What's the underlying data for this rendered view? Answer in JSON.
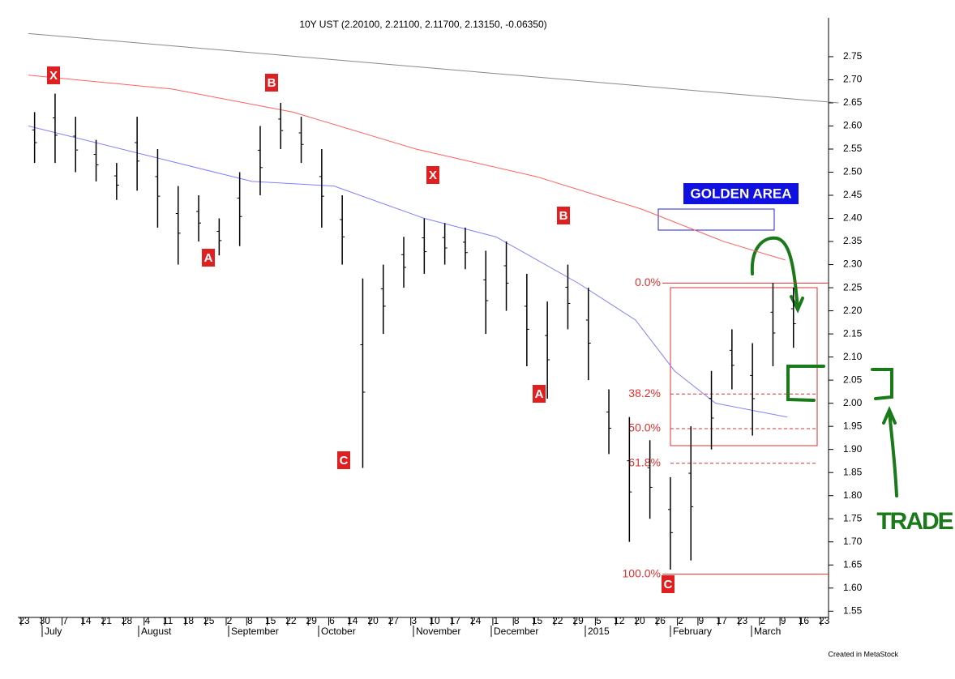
{
  "chart_data": {
    "type": "ohlc",
    "title": "10Y UST (2.20100, 2.21100, 2.11700, 2.13150, -0.06350)",
    "x_tick_labels": [
      "23",
      "30",
      "7",
      "14",
      "21",
      "28",
      "4",
      "11",
      "18",
      "25",
      "2",
      "8",
      "15",
      "22",
      "29",
      "6",
      "14",
      "20",
      "27",
      "3",
      "10",
      "17",
      "24",
      "1",
      "8",
      "15",
      "22",
      "29",
      "5",
      "12",
      "20",
      "26",
      "2",
      "9",
      "17",
      "23",
      "2",
      "9",
      "16",
      "23"
    ],
    "month_labels": [
      "July",
      "August",
      "September",
      "October",
      "November",
      "December",
      "2015",
      "February",
      "March"
    ],
    "bars": {
      "name": "10Y UST",
      "color": "#000000",
      "high": [
        2.63,
        2.67,
        2.62,
        2.57,
        2.52,
        2.62,
        2.55,
        2.47,
        2.45,
        2.4,
        2.5,
        2.6,
        2.65,
        2.62,
        2.55,
        2.45,
        2.27,
        2.3,
        2.36,
        2.4,
        2.39,
        2.38,
        2.33,
        2.35,
        2.28,
        2.22,
        2.3,
        2.25,
        2.03,
        1.97,
        1.92,
        1.84,
        1.95,
        2.07,
        2.16,
        2.13,
        2.26,
        2.25
      ],
      "low": [
        2.52,
        2.52,
        2.5,
        2.48,
        2.44,
        2.46,
        2.38,
        2.3,
        2.35,
        2.32,
        2.34,
        2.45,
        2.55,
        2.52,
        2.38,
        2.3,
        1.86,
        2.15,
        2.25,
        2.28,
        2.3,
        2.29,
        2.15,
        2.2,
        2.08,
        2.01,
        2.16,
        2.05,
        1.89,
        1.7,
        1.75,
        1.64,
        1.66,
        1.9,
        2.03,
        1.93,
        2.08,
        2.12
      ]
    },
    "lines": [
      {
        "color": "#8080ff",
        "x": [
          -0.3,
          10.6,
          14.6,
          19.0,
          22.5,
          26.5,
          29.3,
          31.2,
          33.2,
          36.7
        ],
        "values": [
          2.6,
          2.48,
          2.47,
          2.4,
          2.36,
          2.26,
          2.18,
          2.07,
          2.0,
          1.97
        ]
      },
      {
        "color": "#ff6060",
        "x": [
          -0.3,
          6.7,
          12.6,
          18.6,
          24.5,
          29.6,
          33.6,
          36.6
        ],
        "values": [
          2.71,
          2.68,
          2.63,
          2.55,
          2.49,
          2.42,
          2.35,
          2.31
        ]
      },
      {
        "color": "#888888",
        "x": [
          -0.3,
          39.2
        ],
        "values": [
          2.8,
          2.65
        ]
      }
    ],
    "ylim": [
      1.54,
      2.82
    ],
    "yticks": [
      1.55,
      {
        "value": 1.6,
        "label": "1.60"
      },
      1.65,
      {
        "value": 1.7,
        "label": "1.70"
      },
      1.75,
      {
        "value": 1.8,
        "label": "1.80"
      },
      1.85,
      {
        "value": 1.9,
        "label": "1.90"
      },
      1.95,
      {
        "value": 2.0,
        "label": "2.00"
      },
      2.05,
      {
        "value": 2.1,
        "label": "2.10"
      },
      2.15,
      {
        "value": 2.2,
        "label": "2.20"
      },
      2.25,
      {
        "value": 2.3,
        "label": "2.30"
      },
      2.35,
      {
        "value": 2.4,
        "label": "2.40"
      },
      2.45,
      {
        "value": 2.5,
        "label": "2.50"
      },
      2.55,
      {
        "value": 2.6,
        "label": "2.60"
      },
      2.65,
      {
        "value": 2.7,
        "label": "2.70"
      },
      2.75
    ],
    "fib_levels": [
      {
        "label": "0.0%",
        "value": 2.26
      },
      {
        "label": "38.2%",
        "value": 2.02
      },
      {
        "label": "50.0%",
        "value": 1.945
      },
      {
        "label": "61.8%",
        "value": 1.87
      },
      {
        "label": "100.0%",
        "value": 1.63
      }
    ],
    "wave_labels": [
      "X",
      "B",
      "A",
      "C",
      "X",
      "B",
      "A",
      "C"
    ],
    "golden_area": "GOLDEN AREA",
    "trade_label": "TRADE",
    "footer": "Created in MetaStock"
  }
}
